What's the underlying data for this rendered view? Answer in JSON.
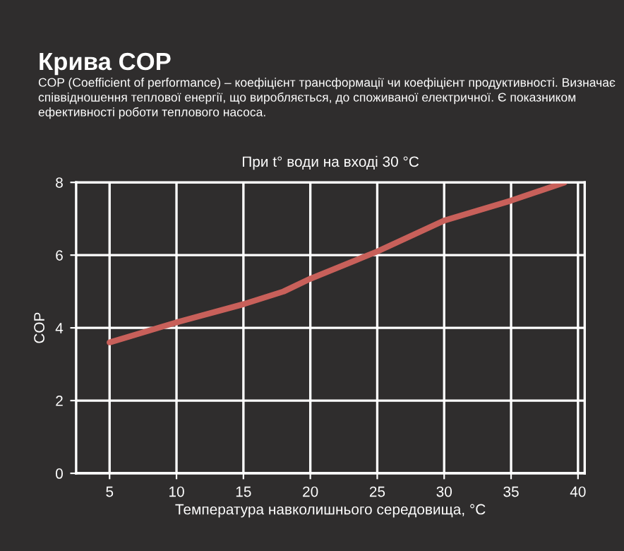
{
  "chart_data": {
    "type": "line",
    "title": "Крива COP",
    "subtitle": "COP (Coefficient of performance) – коефіцієнт трансформації чи коефіцієнт продуктивності. Визначає співвідношення теплової енергії, що виробляється, до споживаної електричної. Є показником ефективності роботи теплового насоса.",
    "annotations": [
      "При t° води на вході 30 °C"
    ],
    "xlabel": "Температура навколишнього середовища, °C",
    "ylabel": "COP",
    "x": [
      5,
      10,
      15,
      18,
      20,
      25,
      30,
      35,
      39
    ],
    "series": [
      {
        "color": "#c8605a",
        "values": [
          3.6,
          4.15,
          4.65,
          5.0,
          5.35,
          6.1,
          6.95,
          7.5,
          8.0
        ]
      }
    ],
    "xlim": [
      2.5,
      40.5
    ],
    "xticks": [
      5,
      10,
      15,
      20,
      25,
      30,
      35,
      40
    ],
    "ylim": [
      0,
      8
    ],
    "yticks": [
      0,
      2,
      4,
      6,
      8
    ],
    "grid": true,
    "marker": "none",
    "line_style": "solid"
  }
}
